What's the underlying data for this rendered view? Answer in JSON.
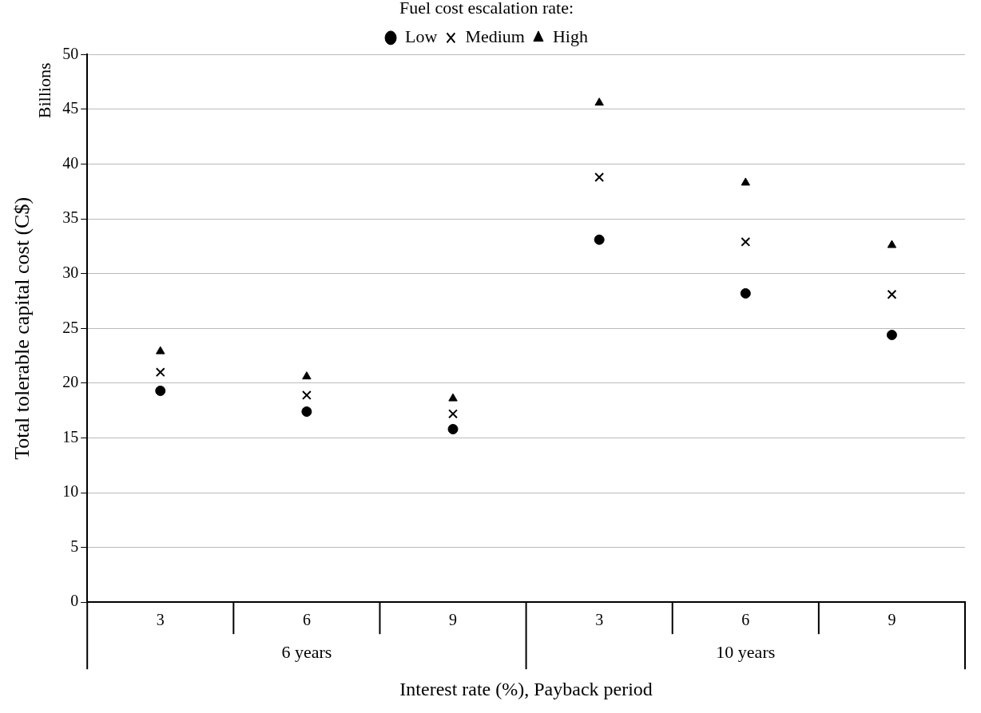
{
  "chart_data": {
    "type": "scatter",
    "xlabel": "Interest rate (%), Payback period",
    "ylabel": "Total tolerable capital cost (C$)",
    "legend_title": "Fuel cost escalation rate:",
    "categories": [
      "3",
      "6",
      "9",
      "3",
      "6",
      "9"
    ],
    "annotations": [
      "Billions",
      "6 years",
      "10 years"
    ],
    "series": [
      {
        "name": "Low",
        "color": "#000000",
        "marker": "circle",
        "values": [
          19.3,
          17.4,
          15.8,
          33.1,
          28.2,
          24.4
        ]
      },
      {
        "name": "Medium",
        "color": "#000000",
        "marker": "cross",
        "values": [
          21.0,
          18.9,
          17.2,
          38.8,
          32.9,
          28.1
        ]
      },
      {
        "name": "High",
        "color": "#000000",
        "marker": "triangle",
        "values": [
          22.9,
          20.6,
          18.6,
          45.6,
          38.3,
          32.6
        ]
      }
    ],
    "ylim": [
      0,
      50
    ],
    "yticks": [
      0,
      5,
      10,
      15,
      20,
      25,
      30,
      35,
      40,
      45,
      50
    ],
    "grid": "y",
    "legend": "top"
  }
}
